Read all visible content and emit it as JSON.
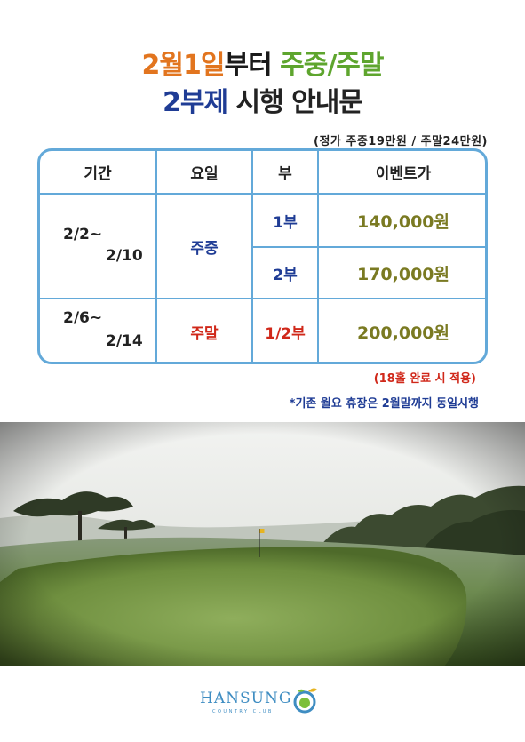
{
  "title": {
    "line1": {
      "part1": "2월1일",
      "part2": "부터 ",
      "part3": "주중/주말"
    },
    "line2": {
      "part1": "2부제",
      "part2": " 시행 안내문"
    }
  },
  "price_note": "(정가 주중19만원 / 주말24만원)",
  "table": {
    "headers": [
      "기간",
      "요일",
      "부",
      "이벤트가"
    ],
    "weekday": {
      "period_start": "2/2~",
      "period_end": "2/10",
      "day": "주중",
      "rows": [
        {
          "part": "1부",
          "price": "140,000원"
        },
        {
          "part": "2부",
          "price": "170,000원"
        }
      ]
    },
    "weekend": {
      "period_start": "2/6~",
      "period_end": "2/14",
      "day": "주말",
      "part": "1/2부",
      "price": "200,000원"
    }
  },
  "notes": {
    "red": "(18홀 완료 시 적용)",
    "blue": "*기존 월요 휴장은 2월말까지 동일시행"
  },
  "logo": {
    "name": "HANSUNG",
    "sub": "COUNTRY CLUB"
  },
  "colors": {
    "orange": "#e2751f",
    "green": "#5ea52e",
    "blue": "#1f3c95",
    "red": "#d0281a",
    "olive": "#7a7a22",
    "table_border": "#63a9d9"
  }
}
